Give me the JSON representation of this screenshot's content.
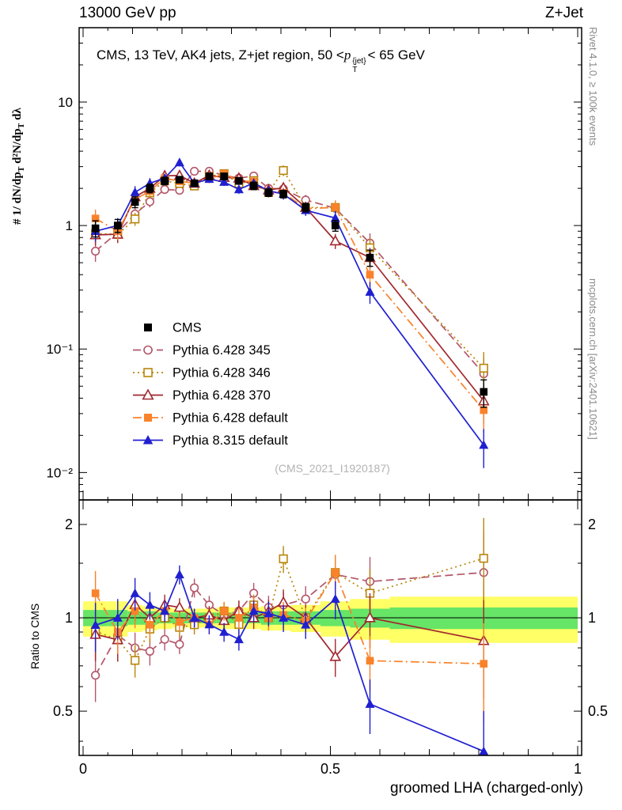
{
  "header": {
    "left": "13000 GeV pp",
    "right": "Z+Jet"
  },
  "side_notes": {
    "top_right": "Rivet 4.1.0, ≥ 100k events",
    "bottom_right": "mcplots.cern.ch [arXiv:2401.10621]"
  },
  "annotation": {
    "pre": "CMS, 13 TeV, AK4 jets, Z+jet region, 50 <",
    "p": "p",
    "sup": "{jet}",
    "sub": "T",
    "post": "< 65 GeV"
  },
  "watermark": "(CMS_2021_I1920187)",
  "axes": {
    "ylabel_hash": "#",
    "ylabel_frac1": " 1/ dN/dp",
    "ylabel_sub1": "T",
    "ylabel_frac2": "  d²N/dp",
    "ylabel_sub2": "T",
    "ylabel_frac3": " dλ",
    "ylabel_ratio": "Ratio to CMS",
    "xlabel": "groomed LHA (charged-only)"
  },
  "chart_data": {
    "type": "line",
    "title": "CMS, 13 TeV, AK4 jets, Z+jet region, 50 < pT{jet} < 65 GeV",
    "xlabel": "groomed LHA (charged-only)",
    "ylabel": "# 1/(dN/dpT) d²N/dpT dλ",
    "ratio_ylabel": "Ratio to CMS",
    "xlim": [
      -0.008,
      1.008
    ],
    "ylim_main": [
      0.006,
      40
    ],
    "ylim_ratio": [
      0.36,
      2.4
    ],
    "x": [
      0.025,
      0.07,
      0.105,
      0.135,
      0.165,
      0.195,
      0.225,
      0.255,
      0.285,
      0.315,
      0.345,
      0.375,
      0.405,
      0.45,
      0.51,
      0.58,
      0.81
    ],
    "bin_edges": [
      0.0,
      0.05,
      0.09,
      0.12,
      0.15,
      0.18,
      0.21,
      0.24,
      0.27,
      0.3,
      0.33,
      0.36,
      0.39,
      0.42,
      0.48,
      0.54,
      0.62,
      1.0
    ],
    "series": [
      {
        "name": "CMS",
        "color": "#000000",
        "marker": "square-filled",
        "line": "none",
        "caps": true,
        "values": [
          0.95,
          1.0,
          1.55,
          2.0,
          2.3,
          2.35,
          2.2,
          2.5,
          2.5,
          2.3,
          2.1,
          1.85,
          1.8,
          1.4,
          1.0,
          0.55,
          0.045
        ],
        "rel_err": [
          0.15,
          0.12,
          0.1,
          0.08,
          0.07,
          0.06,
          0.06,
          0.06,
          0.06,
          0.06,
          0.07,
          0.07,
          0.07,
          0.08,
          0.1,
          0.15,
          0.25
        ]
      },
      {
        "name": "Pythia 6.428 345",
        "color": "#b4566a",
        "marker": "circle-open",
        "line": "dashed",
        "caps": false,
        "values": [
          0.62,
          0.88,
          1.24,
          1.56,
          1.96,
          1.93,
          2.75,
          2.75,
          2.55,
          2.42,
          2.52,
          2.0,
          1.98,
          1.61,
          1.38,
          0.72,
          0.063
        ],
        "rel_err": [
          0.18,
          0.15,
          0.12,
          0.1,
          0.08,
          0.07,
          0.07,
          0.07,
          0.07,
          0.08,
          0.08,
          0.09,
          0.1,
          0.1,
          0.14,
          0.2,
          0.35
        ]
      },
      {
        "name": "Pythia 6.428 346",
        "color": "#b8860b",
        "marker": "square-open",
        "line": "dotted",
        "caps": false,
        "values": [
          0.86,
          0.85,
          1.13,
          1.84,
          2.3,
          2.19,
          2.09,
          2.5,
          2.63,
          2.19,
          2.31,
          1.85,
          2.79,
          1.4,
          1.4,
          0.66,
          0.07
        ],
        "rel_err": [
          0.18,
          0.15,
          0.12,
          0.1,
          0.08,
          0.07,
          0.07,
          0.07,
          0.07,
          0.08,
          0.08,
          0.09,
          0.1,
          0.1,
          0.14,
          0.2,
          0.35
        ]
      },
      {
        "name": "Pythia 6.428 370",
        "color": "#a1282e",
        "marker": "triangle-open",
        "line": "solid",
        "caps": false,
        "values": [
          0.84,
          0.85,
          1.71,
          2.0,
          2.53,
          2.54,
          2.2,
          2.55,
          2.45,
          2.42,
          2.1,
          1.94,
          2.02,
          1.4,
          0.75,
          0.55,
          0.038
        ],
        "rel_err": [
          0.18,
          0.15,
          0.12,
          0.1,
          0.08,
          0.07,
          0.07,
          0.07,
          0.07,
          0.08,
          0.08,
          0.09,
          0.1,
          0.1,
          0.14,
          0.2,
          0.35
        ]
      },
      {
        "name": "Pythia 6.428 default",
        "color": "#f9822a",
        "marker": "square-filled",
        "line": "dashdot",
        "caps": false,
        "values": [
          1.14,
          0.9,
          1.63,
          1.9,
          2.42,
          2.28,
          2.2,
          2.38,
          2.63,
          2.3,
          2.27,
          1.85,
          1.84,
          1.37,
          1.4,
          0.4,
          0.032
        ],
        "rel_err": [
          0.18,
          0.15,
          0.12,
          0.1,
          0.08,
          0.07,
          0.07,
          0.07,
          0.07,
          0.08,
          0.08,
          0.09,
          0.1,
          0.1,
          0.14,
          0.2,
          0.35
        ]
      },
      {
        "name": "Pythia 8.315 default",
        "color": "#2020d0",
        "marker": "triangle-filled",
        "line": "solid",
        "caps": false,
        "values": [
          0.9,
          1.0,
          1.86,
          2.2,
          2.42,
          3.24,
          2.2,
          2.38,
          2.25,
          1.96,
          2.21,
          1.91,
          1.8,
          1.33,
          1.15,
          0.29,
          0.0167
        ],
        "rel_err": [
          0.18,
          0.15,
          0.12,
          0.1,
          0.08,
          0.07,
          0.07,
          0.07,
          0.07,
          0.08,
          0.08,
          0.09,
          0.1,
          0.1,
          0.14,
          0.2,
          0.35
        ]
      }
    ],
    "ratio_bands": {
      "yellow": "#ffff66",
      "green": "#66e566",
      "yellow_hw": [
        0.13,
        0.13,
        0.1,
        0.09,
        0.08,
        0.07,
        0.07,
        0.07,
        0.08,
        0.08,
        0.08,
        0.09,
        0.09,
        0.1,
        0.13,
        0.15,
        0.17
      ],
      "green_hw": [
        0.06,
        0.06,
        0.05,
        0.05,
        0.04,
        0.04,
        0.04,
        0.04,
        0.04,
        0.04,
        0.04,
        0.05,
        0.05,
        0.05,
        0.06,
        0.07,
        0.08
      ]
    },
    "xticks": [
      {
        "v": 0,
        "label": "0"
      },
      {
        "v": 0.5,
        "label": "0.5"
      },
      {
        "v": 1,
        "label": "1"
      }
    ],
    "yticks_main": [
      {
        "v": 10,
        "label": "10"
      },
      {
        "v": 1,
        "label": "1"
      },
      {
        "v": 0.1,
        "label": "10⁻¹"
      },
      {
        "v": 0.01,
        "label": "10⁻²"
      }
    ],
    "yticks_ratio": [
      {
        "v": 2,
        "label": "2"
      },
      {
        "v": 1,
        "label": "1"
      },
      {
        "v": 0.5,
        "label": "0.5"
      }
    ],
    "legend_position": "center-left"
  }
}
